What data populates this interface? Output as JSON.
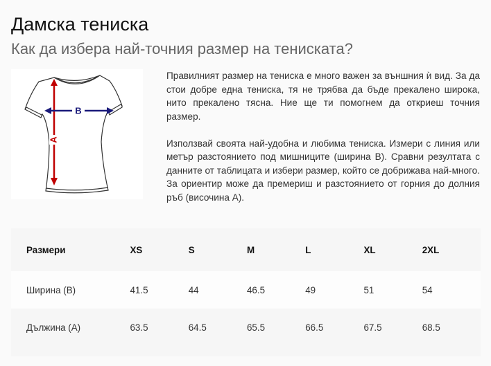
{
  "header": {
    "title": "Дамска тениска",
    "subtitle": "Как да избера най-точния размер на тениската?"
  },
  "illustration": {
    "icon": "tshirt-measurement-diagram",
    "label_width": "B",
    "label_length": "A",
    "colors": {
      "width_arrow": "#1a1a7a",
      "length_arrow": "#c00000"
    }
  },
  "description": {
    "paragraphs": [
      "Правилният размер на тениска е много важен за външния ѝ вид. За да стои добре една тениска, тя не трябва да бъде прекалено широка, нито прекалено тясна. Ние ще ти помогнем да откриеш точния размер.",
      "Използвай своята най-удобна и любима тениска. Измери с линия или метър разстоянието под мишниците (ширина В). Сравни резултата с данните от таблицата и избери размер, който се добрижава най-много. За ориентир може да премериш и разстоянието от горния до долния ръб (височина А)."
    ]
  },
  "size_table": {
    "headers": [
      "Размери",
      "XS",
      "S",
      "M",
      "L",
      "XL",
      "2XL"
    ],
    "rows": [
      [
        "Ширина (В)",
        "41.5",
        "44",
        "46.5",
        "49",
        "51",
        "54"
      ],
      [
        "Дължина (А)",
        "63.5",
        "64.5",
        "65.5",
        "66.5",
        "67.5",
        "68.5"
      ]
    ]
  }
}
